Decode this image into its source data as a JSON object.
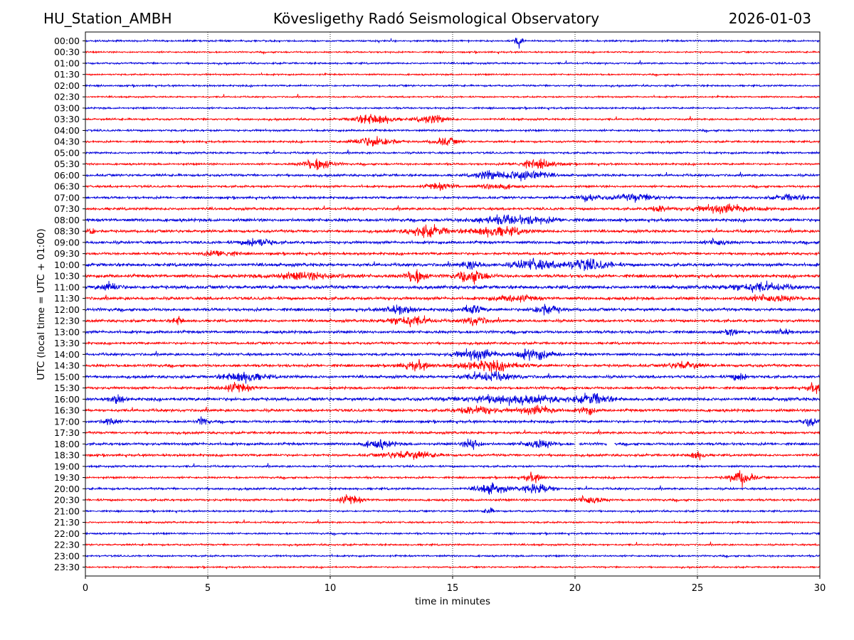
{
  "header": {
    "station": "HU_Station_AMBH",
    "observatory": "Kövesligethy Radó Seismological Observatory",
    "date": "2026-01-03"
  },
  "colors": {
    "blue": "#0000dd",
    "red": "#ff0000",
    "grid": "#000000",
    "axis": "#000000"
  },
  "chart_data": {
    "type": "line",
    "title": "Kövesligethy Radó Seismological Observatory",
    "subtitle_left": "HU_Station_AMBH",
    "subtitle_right": "2026-01-03",
    "xlabel": "time in minutes",
    "ylabel": "UTC (local time = UTC + 01:00)",
    "xlim": [
      0,
      30
    ],
    "xticks": [
      0,
      5,
      10,
      15,
      20,
      25,
      30
    ],
    "grid": "vertical dotted lines at x ticks",
    "trace_colors": [
      "blue",
      "red"
    ],
    "rows": [
      "00:00",
      "00:30",
      "01:00",
      "01:30",
      "02:00",
      "02:30",
      "03:00",
      "03:30",
      "04:00",
      "04:30",
      "05:00",
      "05:30",
      "06:00",
      "06:30",
      "07:00",
      "07:30",
      "08:00",
      "08:30",
      "09:00",
      "09:30",
      "10:00",
      "10:30",
      "11:00",
      "11:30",
      "12:00",
      "12:30",
      "13:00",
      "13:30",
      "14:00",
      "14:30",
      "15:00",
      "15:30",
      "16:00",
      "16:30",
      "17:00",
      "17:30",
      "18:00",
      "18:30",
      "19:00",
      "19:30",
      "20:00",
      "20:30",
      "21:00",
      "21:30",
      "22:00",
      "22:30",
      "23:00",
      "23:30"
    ],
    "base_noise": [
      0.9,
      0.8,
      0.9,
      0.8,
      0.9,
      0.8,
      0.9,
      1.0,
      1.0,
      1.0,
      1.0,
      1.0,
      1.2,
      1.1,
      1.2,
      1.3,
      1.5,
      1.4,
      1.4,
      1.3,
      1.6,
      1.6,
      1.7,
      1.5,
      1.5,
      1.4,
      1.4,
      1.2,
      1.3,
      1.4,
      1.4,
      1.3,
      1.6,
      1.4,
      1.3,
      1.2,
      1.3,
      1.2,
      1.0,
      1.0,
      1.1,
      1.1,
      0.9,
      0.9,
      0.9,
      0.9,
      0.9,
      0.8
    ],
    "bursts": [
      {
        "row": "00:00",
        "minute": 17.7,
        "width": 0.15,
        "amplitude": 7
      },
      {
        "row": "03:30",
        "minute": 11.8,
        "width": 0.8,
        "amplitude": 5
      },
      {
        "row": "03:30",
        "minute": 14.2,
        "width": 0.6,
        "amplitude": 4
      },
      {
        "row": "04:30",
        "minute": 11.8,
        "width": 0.8,
        "amplitude": 5
      },
      {
        "row": "04:30",
        "minute": 14.7,
        "width": 0.5,
        "amplitude": 4
      },
      {
        "row": "05:30",
        "minute": 9.5,
        "width": 0.6,
        "amplitude": 6
      },
      {
        "row": "05:30",
        "minute": 18.5,
        "width": 0.8,
        "amplitude": 4
      },
      {
        "row": "06:00",
        "minute": 16.5,
        "width": 0.6,
        "amplitude": 4
      },
      {
        "row": "06:00",
        "minute": 18.0,
        "width": 0.8,
        "amplitude": 6
      },
      {
        "row": "06:30",
        "minute": 14.5,
        "width": 0.6,
        "amplitude": 3
      },
      {
        "row": "06:30",
        "minute": 16.8,
        "width": 0.6,
        "amplitude": 3
      },
      {
        "row": "07:00",
        "minute": 20.5,
        "width": 0.5,
        "amplitude": 3
      },
      {
        "row": "07:00",
        "minute": 22.5,
        "width": 1.0,
        "amplitude": 3
      },
      {
        "row": "07:00",
        "minute": 28.8,
        "width": 0.6,
        "amplitude": 3
      },
      {
        "row": "07:30",
        "minute": 23.5,
        "width": 0.4,
        "amplitude": 3
      },
      {
        "row": "07:30",
        "minute": 26.2,
        "width": 1.2,
        "amplitude": 4
      },
      {
        "row": "08:00",
        "minute": 17.5,
        "width": 1.6,
        "amplitude": 4
      },
      {
        "row": "08:30",
        "minute": 0.2,
        "width": 0.2,
        "amplitude": 4
      },
      {
        "row": "08:30",
        "minute": 14.0,
        "width": 0.8,
        "amplitude": 5
      },
      {
        "row": "08:30",
        "minute": 16.8,
        "width": 1.0,
        "amplitude": 5
      },
      {
        "row": "09:00",
        "minute": 7.0,
        "width": 0.6,
        "amplitude": 4
      },
      {
        "row": "09:00",
        "minute": 25.8,
        "width": 0.4,
        "amplitude": 3
      },
      {
        "row": "09:30",
        "minute": 5.5,
        "width": 0.6,
        "amplitude": 3
      },
      {
        "row": "10:00",
        "minute": 18.3,
        "width": 0.8,
        "amplitude": 5
      },
      {
        "row": "10:00",
        "minute": 20.5,
        "width": 0.9,
        "amplitude": 5
      },
      {
        "row": "10:00",
        "minute": 15.8,
        "width": 0.4,
        "amplitude": 4
      },
      {
        "row": "10:30",
        "minute": 13.5,
        "width": 0.4,
        "amplitude": 7
      },
      {
        "row": "10:30",
        "minute": 15.8,
        "width": 0.6,
        "amplitude": 6
      },
      {
        "row": "10:30",
        "minute": 9.0,
        "width": 1.5,
        "amplitude": 3
      },
      {
        "row": "11:00",
        "minute": 1.0,
        "width": 0.4,
        "amplitude": 4
      },
      {
        "row": "11:00",
        "minute": 27.5,
        "width": 1.2,
        "amplitude": 4
      },
      {
        "row": "11:30",
        "minute": 17.5,
        "width": 0.8,
        "amplitude": 3
      },
      {
        "row": "11:30",
        "minute": 28.0,
        "width": 1.0,
        "amplitude": 3
      },
      {
        "row": "12:00",
        "minute": 12.8,
        "width": 0.6,
        "amplitude": 4
      },
      {
        "row": "12:00",
        "minute": 15.8,
        "width": 0.4,
        "amplitude": 5
      },
      {
        "row": "12:00",
        "minute": 18.8,
        "width": 0.5,
        "amplitude": 5
      },
      {
        "row": "12:30",
        "minute": 13.2,
        "width": 0.8,
        "amplitude": 5
      },
      {
        "row": "12:30",
        "minute": 15.9,
        "width": 0.5,
        "amplitude": 4
      },
      {
        "row": "12:30",
        "minute": 3.8,
        "width": 0.2,
        "amplitude": 4
      },
      {
        "row": "13:00",
        "minute": 26.4,
        "width": 0.2,
        "amplitude": 4
      },
      {
        "row": "13:00",
        "minute": 28.5,
        "width": 0.3,
        "amplitude": 3
      },
      {
        "row": "14:00",
        "minute": 16.0,
        "width": 0.8,
        "amplitude": 5
      },
      {
        "row": "14:00",
        "minute": 18.3,
        "width": 0.8,
        "amplitude": 5
      },
      {
        "row": "14:30",
        "minute": 13.5,
        "width": 0.6,
        "amplitude": 4
      },
      {
        "row": "14:30",
        "minute": 16.5,
        "width": 1.2,
        "amplitude": 5
      },
      {
        "row": "14:30",
        "minute": 24.5,
        "width": 0.6,
        "amplitude": 4
      },
      {
        "row": "15:00",
        "minute": 6.5,
        "width": 0.8,
        "amplitude": 5
      },
      {
        "row": "15:00",
        "minute": 16.5,
        "width": 1.0,
        "amplitude": 4
      },
      {
        "row": "15:00",
        "minute": 26.7,
        "width": 0.3,
        "amplitude": 4
      },
      {
        "row": "15:30",
        "minute": 6.2,
        "width": 0.6,
        "amplitude": 4
      },
      {
        "row": "15:30",
        "minute": 29.8,
        "width": 0.3,
        "amplitude": 4
      },
      {
        "row": "16:00",
        "minute": 1.3,
        "width": 0.3,
        "amplitude": 4
      },
      {
        "row": "16:00",
        "minute": 17.5,
        "width": 2.0,
        "amplitude": 4
      },
      {
        "row": "16:00",
        "minute": 20.8,
        "width": 0.6,
        "amplitude": 5
      },
      {
        "row": "16:30",
        "minute": 16.0,
        "width": 0.8,
        "amplitude": 4
      },
      {
        "row": "16:30",
        "minute": 18.5,
        "width": 0.8,
        "amplitude": 4
      },
      {
        "row": "16:30",
        "minute": 20.5,
        "width": 0.3,
        "amplitude": 4
      },
      {
        "row": "17:00",
        "minute": 1.0,
        "width": 0.3,
        "amplitude": 4
      },
      {
        "row": "17:00",
        "minute": 4.8,
        "width": 0.2,
        "amplitude": 4
      },
      {
        "row": "17:00",
        "minute": 29.6,
        "width": 0.3,
        "amplitude": 4
      },
      {
        "row": "18:00",
        "minute": 12.0,
        "width": 0.6,
        "amplitude": 4
      },
      {
        "row": "18:00",
        "minute": 15.8,
        "width": 0.3,
        "amplitude": 6
      },
      {
        "row": "18:00",
        "minute": 18.5,
        "width": 0.6,
        "amplitude": 4
      },
      {
        "row": "18:30",
        "minute": 13.2,
        "width": 1.0,
        "amplitude": 4
      },
      {
        "row": "18:30",
        "minute": 25.0,
        "width": 0.3,
        "amplitude": 4
      },
      {
        "row": "19:30",
        "minute": 18.3,
        "width": 0.4,
        "amplitude": 4
      },
      {
        "row": "19:30",
        "minute": 26.8,
        "width": 0.5,
        "amplitude": 7
      },
      {
        "row": "20:00",
        "minute": 16.6,
        "width": 0.6,
        "amplitude": 5
      },
      {
        "row": "20:00",
        "minute": 18.5,
        "width": 0.6,
        "amplitude": 5
      },
      {
        "row": "20:30",
        "minute": 10.8,
        "width": 0.5,
        "amplitude": 4
      },
      {
        "row": "20:30",
        "minute": 20.6,
        "width": 0.5,
        "amplitude": 4
      },
      {
        "row": "21:00",
        "minute": 16.5,
        "width": 0.2,
        "amplitude": 3
      }
    ],
    "gaps": [
      {
        "row": "18:00",
        "from": 20.0,
        "to": 20.15
      },
      {
        "row": "18:00",
        "from": 21.3,
        "to": 21.6
      }
    ]
  }
}
